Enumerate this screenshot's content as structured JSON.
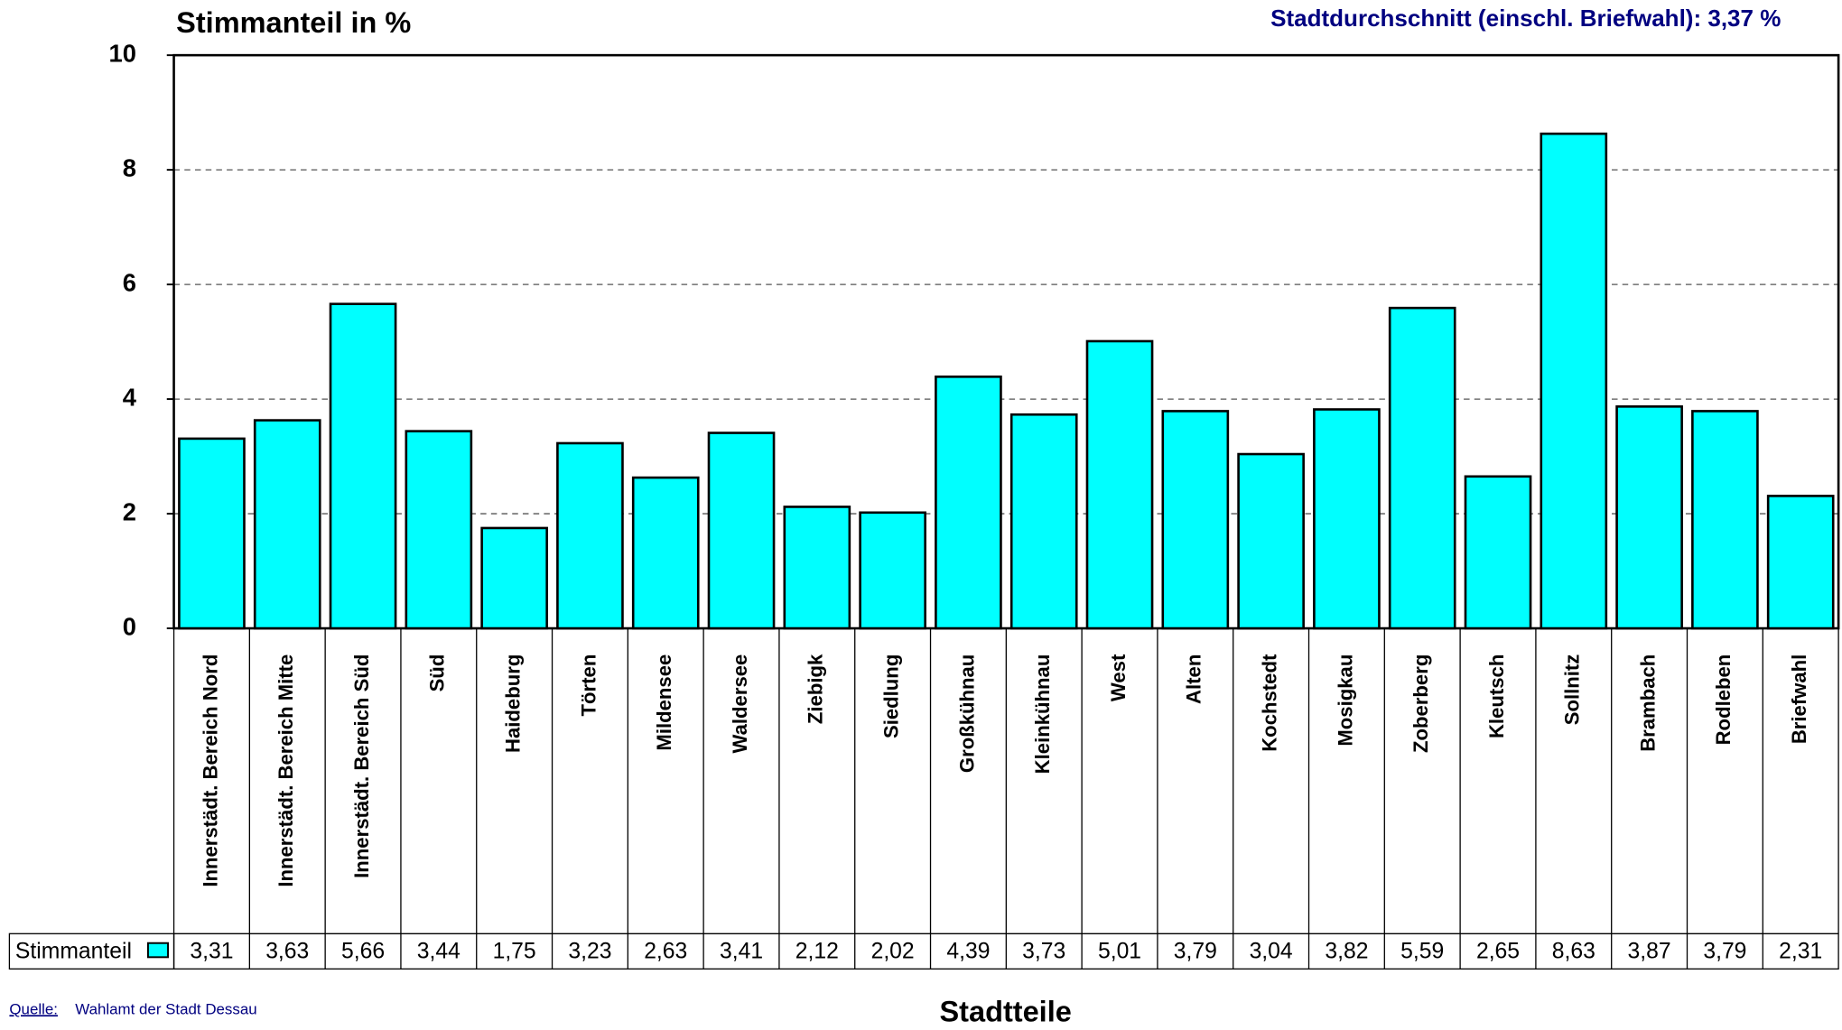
{
  "chart_data": {
    "type": "bar",
    "title": "Stimmanteil in %",
    "subtitle": "Stadtdurchschnitt (einschl. Briefwahl): 3,37 %",
    "xlabel": "Stadtteile",
    "source_label": "Quelle:",
    "source": "Wahlamt der Stadt Dessau",
    "categories": [
      "Innerstädt. Bereich Nord",
      "Innerstädt. Bereich Mitte",
      "Innerstädt. Bereich Süd",
      "Süd",
      "Haideburg",
      "Törten",
      "Mildensee",
      "Waldersee",
      "Ziebigk",
      "Siedlung",
      "Großkühnau",
      "Kleinkühnau",
      "West",
      "Alten",
      "Kochstedt",
      "Mosigkau",
      "Zoberberg",
      "Kleutsch",
      "Sollnitz",
      "Brambach",
      "Rodleben",
      "Briefwahl"
    ],
    "series": [
      {
        "name": "Stimmanteil",
        "color": "#00ffff",
        "values": [
          3.31,
          3.63,
          5.66,
          3.44,
          1.75,
          3.23,
          2.63,
          3.41,
          2.12,
          2.02,
          4.39,
          3.73,
          5.01,
          3.79,
          3.04,
          3.82,
          5.59,
          2.65,
          8.63,
          3.87,
          3.79,
          2.31
        ],
        "value_labels": [
          "3,31",
          "3,63",
          "5,66",
          "3,44",
          "1,75",
          "3,23",
          "2,63",
          "3,41",
          "2,12",
          "2,02",
          "4,39",
          "3,73",
          "5,01",
          "3,79",
          "3,04",
          "3,82",
          "5,59",
          "2,65",
          "8,63",
          "3,87",
          "3,79",
          "2,31"
        ]
      }
    ],
    "ylim": [
      0,
      10
    ],
    "yticks": [
      0,
      2,
      4,
      6,
      8,
      10
    ],
    "grid": true
  }
}
